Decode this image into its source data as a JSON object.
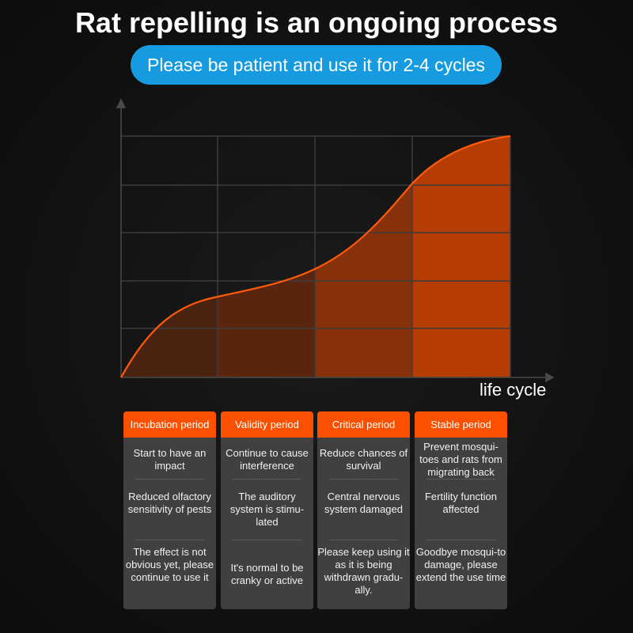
{
  "title": "Rat repelling is an ongoing process",
  "subtitle": "Please be patient and use it for 2-4 cycles",
  "x_axis_label": "life cycle",
  "colors": {
    "accent": "#fa5000",
    "pill": "#169be0",
    "card": "#404040"
  },
  "periods": [
    {
      "name": "Incubation period",
      "items": [
        "Start to have an impact",
        "Reduced olfactory sensitivity of pests",
        "The effect is not obvious yet, please continue to use it"
      ]
    },
    {
      "name": "Validity period",
      "items": [
        "Continue to cause interference",
        "The auditory system is stimu-lated",
        "It's normal to be cranky or active"
      ]
    },
    {
      "name": "Critical period",
      "items": [
        "Reduce chances of survival",
        "Central nervous system damaged",
        "Please keep using it as it is being withdrawn gradu-ally."
      ]
    },
    {
      "name": "Stable period",
      "items": [
        "Prevent mosqui-toes and rats from migrating back",
        "Fertility function affected",
        "Goodbye mosqui-to damage, please extend the use time"
      ]
    }
  ]
}
